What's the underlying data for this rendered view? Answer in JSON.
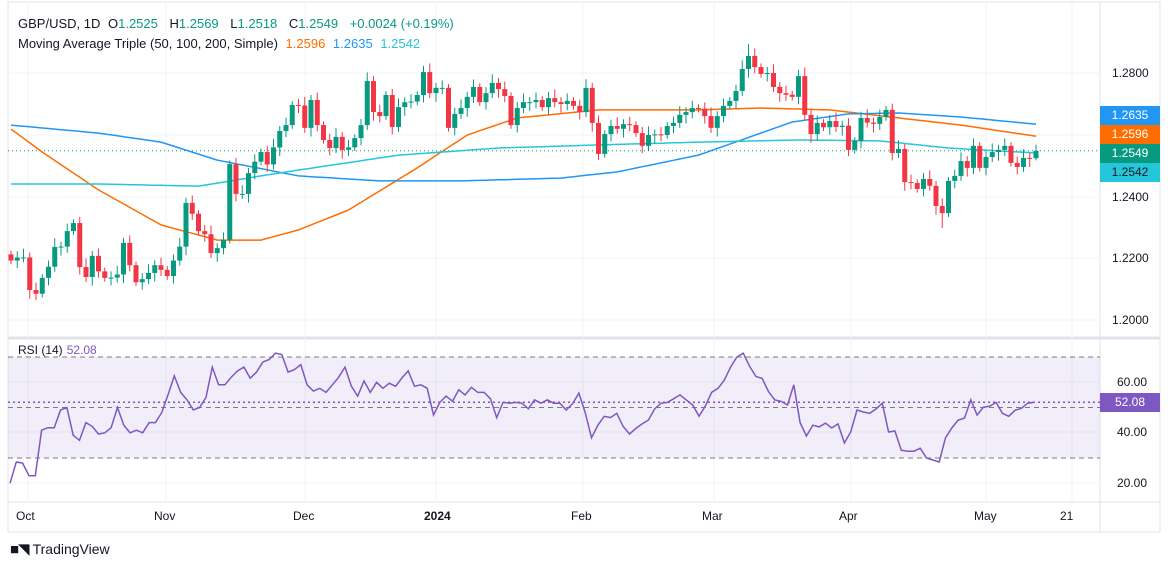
{
  "header": {
    "symbol": "GBP/USD, 1D",
    "open_label": "O",
    "open": "1.2525",
    "high_label": "H",
    "high": "1.2569",
    "low_label": "L",
    "low": "1.2518",
    "close_label": "C",
    "close": "1.2549",
    "change": "+0.0024 (+0.19%)"
  },
  "indicator": {
    "name": "Moving Average Triple (50, 100, 200, Simple)",
    "ma50": "1.2596",
    "ma100": "1.2635",
    "ma200": "1.2542"
  },
  "rsi_legend": {
    "name": "RSI (14)",
    "value": "52.08"
  },
  "price_tags": {
    "ma100": "1.2635",
    "ma50": "1.2596",
    "close": "1.2549",
    "ma200": "1.2542",
    "rsi": "52.08"
  },
  "price_axis": [
    "1.2800",
    "1.2400",
    "1.2200",
    "1.2000"
  ],
  "rsi_axis": [
    "60.00",
    "40.00",
    "20.00"
  ],
  "time_axis": [
    "Oct",
    "Nov",
    "Dec",
    "2024",
    "Feb",
    "Mar",
    "Apr",
    "May",
    "21"
  ],
  "footer": {
    "brand": "TradingView",
    "logo": "TV"
  },
  "colors": {
    "up": "#089981",
    "down": "#f23645",
    "ma50": "#ff6d00",
    "ma100": "#2196f3",
    "ma200": "#26c6da",
    "rsi": "#7e57c2"
  },
  "chart_data": {
    "type": "candlestick",
    "title": "GBP/USD, 1D",
    "ylim": [
      1.195,
      1.292
    ],
    "last_bar": {
      "open": 1.2525,
      "high": 1.2569,
      "low": 1.2518,
      "close": 1.2549
    },
    "first_open": 1.2215,
    "close": [
      1.2195,
      1.2205,
      1.2205,
      1.21,
      1.2088,
      1.2139,
      1.2175,
      1.2239,
      1.224,
      1.229,
      1.2316,
      1.2174,
      1.2142,
      1.221,
      1.216,
      1.2139,
      1.214,
      1.215,
      1.2252,
      1.218,
      1.2125,
      1.2135,
      1.2155,
      1.218,
      1.2165,
      1.2145,
      1.2195,
      1.224,
      1.2381,
      1.2346,
      1.229,
      1.228,
      1.2219,
      1.2235,
      1.2262,
      1.2506,
      1.241,
      1.241,
      1.2477,
      1.2514,
      1.2545,
      1.2505,
      1.256,
      1.2613,
      1.2632,
      1.2697,
      1.2695,
      1.2623,
      1.2713,
      1.2632,
      1.2584,
      1.2558,
      1.2594,
      1.2552,
      1.256,
      1.259,
      1.2632,
      1.2774,
      1.2674,
      1.2661,
      1.2729,
      1.2626,
      1.269,
      1.2706,
      1.2708,
      1.2729,
      1.2803,
      1.2735,
      1.2752,
      1.2752,
      1.2623,
      1.2668,
      1.2687,
      1.2723,
      1.2755,
      1.2706,
      1.2735,
      1.2768,
      1.2748,
      1.2726,
      1.2632,
      1.2687,
      1.2706,
      1.2706,
      1.2713,
      1.269,
      1.2719,
      1.2706,
      1.27,
      1.271,
      1.2694,
      1.2674,
      1.2752,
      1.2639,
      1.2539,
      1.2603,
      1.2629,
      1.262,
      1.2635,
      1.2632,
      1.2606,
      1.2565,
      1.26,
      1.2602,
      1.26,
      1.2629,
      1.2639,
      1.2665,
      1.2674,
      1.2687,
      1.2685,
      1.2661,
      1.2623,
      1.2661,
      1.2694,
      1.271,
      1.2742,
      1.2813,
      1.2855,
      1.2819,
      1.2797,
      1.28,
      1.2755,
      1.2735,
      1.273,
      1.2723,
      1.279,
      1.2665,
      1.2603,
      1.2639,
      1.2625,
      1.2645,
      1.2626,
      1.263,
      1.2552,
      1.2581,
      1.2655,
      1.264,
      1.2636,
      1.2658,
      1.2681,
      1.2542,
      1.2555,
      1.2448,
      1.2445,
      1.2426,
      1.2458,
      1.2436,
      1.2371,
      1.2348,
      1.2452,
      1.2468,
      1.2516,
      1.2494,
      1.2565,
      1.2494,
      1.2529,
      1.2545,
      1.2552,
      1.2565,
      1.251,
      1.2497,
      1.2526,
      1.2525,
      1.2549
    ],
    "notable_extremes": {
      "high": 1.2893,
      "high_bar": 118,
      "low": 1.23,
      "low_bar": 149
    },
    "moving_averages": [
      {
        "name": "SMA 50",
        "bars": [
          0,
          5,
          14,
          24,
          33,
          40,
          46,
          54,
          65,
          73,
          81,
          94,
          110,
          120,
          131,
          142,
          152,
          164
        ],
        "values": [
          1.2619,
          1.2545,
          1.2423,
          1.231,
          1.2261,
          1.2261,
          1.2294,
          1.2358,
          1.2494,
          1.26,
          1.2655,
          1.2681,
          1.2681,
          1.2687,
          1.2681,
          1.2655,
          1.2632,
          1.2596
        ]
      },
      {
        "name": "SMA 100",
        "bars": [
          0,
          14,
          24,
          33,
          46,
          59,
          72,
          88,
          97,
          110,
          125,
          134,
          142,
          152,
          164
        ],
        "values": [
          1.2632,
          1.2606,
          1.2577,
          1.2519,
          1.2468,
          1.2452,
          1.2452,
          1.2461,
          1.2481,
          1.2535,
          1.2642,
          1.2668,
          1.2671,
          1.2658,
          1.2635
        ]
      },
      {
        "name": "SMA 200",
        "bars": [
          0,
          14,
          30,
          40,
          46,
          62,
          78,
          94,
          110,
          126,
          139,
          150,
          164
        ],
        "values": [
          1.2442,
          1.2442,
          1.2435,
          1.2468,
          1.2487,
          1.2535,
          1.2558,
          1.2568,
          1.2577,
          1.2584,
          1.2581,
          1.2558,
          1.2542
        ]
      }
    ],
    "rsi": {
      "name": "RSI (14)",
      "levels": [
        70,
        50,
        30
      ],
      "ylim": [
        15,
        75
      ],
      "values": [
        20,
        28.4,
        28,
        23,
        23,
        41,
        42,
        42,
        49,
        50,
        39,
        37,
        44,
        42.5,
        39.5,
        40,
        42,
        50,
        43,
        40,
        41,
        40,
        44,
        44,
        48,
        55,
        62.5,
        56,
        53,
        49,
        50,
        54,
        66,
        59,
        59,
        62,
        64.5,
        66,
        61.6,
        64,
        68,
        69,
        71.5,
        71,
        64,
        65,
        67,
        59,
        56.5,
        57.6,
        56,
        59,
        62,
        66,
        58.5,
        54.5,
        60.5,
        56,
        60,
        57.6,
        59.6,
        58.4,
        61.7,
        64.5,
        58.4,
        59,
        57.6,
        47,
        52,
        54.5,
        52.5,
        57,
        55,
        58,
        56,
        56,
        53.5,
        46,
        52,
        51.7,
        52,
        51.7,
        49.5,
        53,
        51.7,
        53,
        51.7,
        51.7,
        49,
        51.5,
        55.7,
        48,
        38,
        43,
        46.5,
        46,
        47.7,
        42.5,
        39.5,
        41.7,
        43.5,
        45,
        49.5,
        51.7,
        52,
        53.5,
        55,
        53,
        51,
        46.5,
        50.5,
        56,
        57.6,
        60.8,
        66,
        70,
        71.5,
        66.3,
        62.3,
        61.5,
        56.3,
        53,
        52.4,
        51,
        59,
        44,
        38.7,
        43,
        42.3,
        43.8,
        41.9,
        43.5,
        36,
        40.3,
        49,
        48.2,
        47.7,
        49.4,
        51.7,
        40.3,
        40.7,
        33.1,
        32.7,
        32.7,
        33.9,
        30,
        29.2,
        28.4,
        38,
        41.9,
        45,
        45.8,
        53,
        47,
        50.1,
        50.5,
        52,
        47.7,
        46.5,
        48.9,
        49.7,
        51.7,
        52.08
      ]
    }
  }
}
